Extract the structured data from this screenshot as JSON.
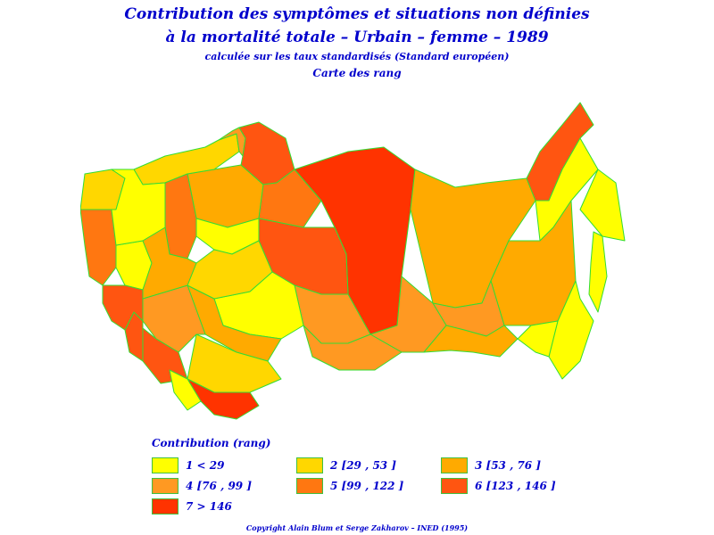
{
  "title": {
    "line1": "Contribution des symptômes et situations non définies",
    "line2": "à la mortalité totale  –  Urbain  –  femme  –  1989",
    "line3": "calculée sur les taux standardisés (Standard européen)",
    "line4": "Carte des rang"
  },
  "legend": {
    "title": "Contribution (rang)",
    "items": [
      {
        "label": "1  <  29",
        "color": "#ffff00"
      },
      {
        "label": "2  [29  ,  53  ]",
        "color": "#ffd700"
      },
      {
        "label": "3  [53  ,  76  ]",
        "color": "#ffaa00"
      },
      {
        "label": "4  [76  ,  99  ]",
        "color": "#ff9922"
      },
      {
        "label": "5  [99  ,  122  ]",
        "color": "#ff7711"
      },
      {
        "label": "6  [123  ,  146  ]",
        "color": "#ff5511"
      },
      {
        "label": "7  >  146",
        "color": "#ff3300"
      }
    ]
  },
  "map": {
    "border_color": "#33dd33",
    "regions": [
      {
        "name": "west-large",
        "class": 3
      },
      {
        "name": "north-west-1",
        "class": 2
      },
      {
        "name": "komi",
        "class": 4
      },
      {
        "name": "arkhangelsk",
        "class": 6
      },
      {
        "name": "yamal",
        "class": 5
      },
      {
        "name": "krasnoyarsk",
        "class": 7
      },
      {
        "name": "yakutia",
        "class": 3
      },
      {
        "name": "chukotka",
        "class": 6
      },
      {
        "name": "magadan",
        "class": 1
      },
      {
        "name": "kamchatka",
        "class": 1
      },
      {
        "name": "khabarovsk",
        "class": 3
      },
      {
        "name": "primorye",
        "class": 1
      },
      {
        "name": "amur",
        "class": 1
      },
      {
        "name": "chita",
        "class": 4
      },
      {
        "name": "irkutsk",
        "class": 4
      },
      {
        "name": "buryatia",
        "class": 3
      },
      {
        "name": "tyumen-south",
        "class": 6
      },
      {
        "name": "omsk",
        "class": 4
      },
      {
        "name": "novosibirsk",
        "class": 1
      },
      {
        "name": "altai",
        "class": 4
      },
      {
        "name": "kazakhstan-north",
        "class": 3
      },
      {
        "name": "kazakhstan-center",
        "class": 2
      },
      {
        "name": "kazakhstan-south",
        "class": 4
      },
      {
        "name": "central-asia-1",
        "class": 6
      },
      {
        "name": "central-asia-2",
        "class": 7
      },
      {
        "name": "central-asia-3",
        "class": 1
      },
      {
        "name": "caspian",
        "class": 6
      },
      {
        "name": "volga-1",
        "class": 1
      },
      {
        "name": "volga-2",
        "class": 2
      },
      {
        "name": "urals",
        "class": 5
      },
      {
        "name": "ukraine-1",
        "class": 1
      },
      {
        "name": "ukraine-2",
        "class": 6
      },
      {
        "name": "crimea",
        "class": 3
      },
      {
        "name": "caucasus",
        "class": 5
      },
      {
        "name": "baltic",
        "class": 2
      },
      {
        "name": "belarus",
        "class": 1
      },
      {
        "name": "sakhalin",
        "class": 1
      }
    ]
  },
  "copyright": "Copyright Alain Blum et Serge Zakharov  –  INED (1995)"
}
